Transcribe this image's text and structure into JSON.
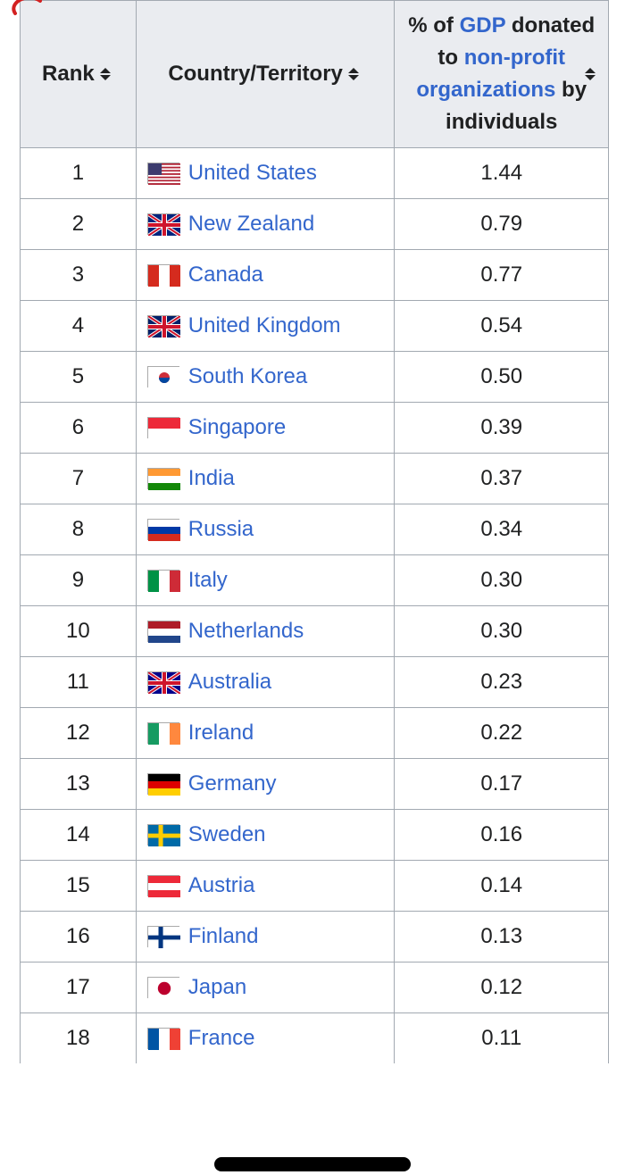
{
  "colors": {
    "header_bg": "#eaecf0",
    "border": "#a2a9b1",
    "link": "#3366cc",
    "text": "#202122",
    "circle": "#d32121"
  },
  "table": {
    "columns": {
      "rank": "Rank",
      "country": "Country/Territory",
      "pct_prefix": "% of ",
      "pct_gdp": "GDP",
      "pct_mid1": " donated to ",
      "pct_npo": "non-profit organizations",
      "pct_suffix": " by individuals"
    },
    "rows": [
      {
        "rank": "1",
        "country": "United States",
        "pct": "1.44",
        "flag": "us"
      },
      {
        "rank": "2",
        "country": "New Zealand",
        "pct": "0.79",
        "flag": "nz"
      },
      {
        "rank": "3",
        "country": "Canada",
        "pct": "0.77",
        "flag": "ca"
      },
      {
        "rank": "4",
        "country": "United Kingdom",
        "pct": "0.54",
        "flag": "gb"
      },
      {
        "rank": "5",
        "country": "South Korea",
        "pct": "0.50",
        "flag": "kr"
      },
      {
        "rank": "6",
        "country": "Singapore",
        "pct": "0.39",
        "flag": "sg"
      },
      {
        "rank": "7",
        "country": "India",
        "pct": "0.37",
        "flag": "in"
      },
      {
        "rank": "8",
        "country": "Russia",
        "pct": "0.34",
        "flag": "ru"
      },
      {
        "rank": "9",
        "country": "Italy",
        "pct": "0.30",
        "flag": "it"
      },
      {
        "rank": "10",
        "country": "Netherlands",
        "pct": "0.30",
        "flag": "nl"
      },
      {
        "rank": "11",
        "country": "Australia",
        "pct": "0.23",
        "flag": "au"
      },
      {
        "rank": "12",
        "country": "Ireland",
        "pct": "0.22",
        "flag": "ie"
      },
      {
        "rank": "13",
        "country": "Germany",
        "pct": "0.17",
        "flag": "de"
      },
      {
        "rank": "14",
        "country": "Sweden",
        "pct": "0.16",
        "flag": "se"
      },
      {
        "rank": "15",
        "country": "Austria",
        "pct": "0.14",
        "flag": "at"
      },
      {
        "rank": "16",
        "country": "Finland",
        "pct": "0.13",
        "flag": "fi"
      },
      {
        "rank": "17",
        "country": "Japan",
        "pct": "0.12",
        "flag": "jp"
      },
      {
        "rank": "18",
        "country": "France",
        "pct": "0.11",
        "flag": "fr"
      }
    ]
  },
  "flags": {
    "us": {
      "type": "stripes",
      "bg": "#b22234",
      "s2": "#ffffff",
      "canton": "#3c3b6e"
    },
    "nz": {
      "type": "unionjack",
      "bg": "#00247d"
    },
    "ca": {
      "type": "tricolor-v",
      "c1": "#d52b1e",
      "c2": "#ffffff",
      "c3": "#d52b1e"
    },
    "gb": {
      "type": "unionjack",
      "bg": "#012169"
    },
    "kr": {
      "type": "kr",
      "bg": "#ffffff"
    },
    "sg": {
      "type": "bicolor-h",
      "c1": "#ed2939",
      "c2": "#ffffff"
    },
    "in": {
      "type": "tricolor-h",
      "c1": "#ff9933",
      "c2": "#ffffff",
      "c3": "#138808"
    },
    "ru": {
      "type": "tricolor-h",
      "c1": "#ffffff",
      "c2": "#0039a6",
      "c3": "#d52b1e"
    },
    "it": {
      "type": "tricolor-v",
      "c1": "#009246",
      "c2": "#ffffff",
      "c3": "#ce2b37"
    },
    "nl": {
      "type": "tricolor-h",
      "c1": "#ae1c28",
      "c2": "#ffffff",
      "c3": "#21468b"
    },
    "au": {
      "type": "unionjack",
      "bg": "#00008b"
    },
    "ie": {
      "type": "tricolor-v",
      "c1": "#169b62",
      "c2": "#ffffff",
      "c3": "#ff883e"
    },
    "de": {
      "type": "tricolor-h",
      "c1": "#000000",
      "c2": "#dd0000",
      "c3": "#ffce00"
    },
    "se": {
      "type": "cross",
      "bg": "#006aa7",
      "cross": "#fecc00"
    },
    "at": {
      "type": "tricolor-h",
      "c1": "#ed2939",
      "c2": "#ffffff",
      "c3": "#ed2939"
    },
    "fi": {
      "type": "cross",
      "bg": "#ffffff",
      "cross": "#003580"
    },
    "jp": {
      "type": "jp",
      "bg": "#ffffff",
      "dot": "#bc002d"
    },
    "fr": {
      "type": "tricolor-v",
      "c1": "#0055a4",
      "c2": "#ffffff",
      "c3": "#ef4135"
    }
  }
}
